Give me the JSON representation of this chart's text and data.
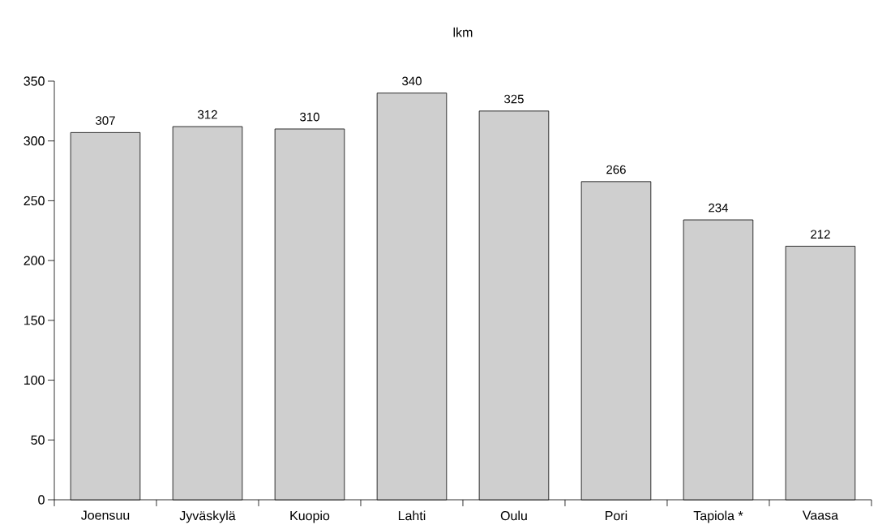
{
  "chart_data": {
    "type": "bar",
    "title": "lkm",
    "categories": [
      "Joensuu",
      "Jyväskylä",
      "Kuopio",
      "Lahti",
      "Oulu",
      "Pori",
      "Tapiola *",
      "Vaasa"
    ],
    "values": [
      307,
      312,
      310,
      340,
      325,
      266,
      234,
      212
    ],
    "color": "#cfcfcf",
    "ylim": [
      0,
      350
    ],
    "yticks": [
      0,
      50,
      100,
      150,
      200,
      250,
      300,
      350
    ],
    "data_labels": true
  }
}
